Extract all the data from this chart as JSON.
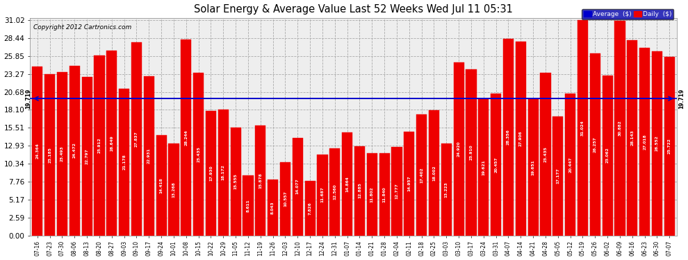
{
  "title": "Solar Energy & Average Value Last 52 Weeks Wed Jul 11 05:31",
  "copyright": "Copyright 2012 Cartronics.com",
  "average_value": 19.719,
  "average_label": "19.719",
  "bar_color": "#ee0000",
  "average_line_color": "#0000cc",
  "background_color": "#ffffff",
  "plot_bg_color": "#ffffff",
  "ylim": [
    0,
    31.02
  ],
  "yticks": [
    0.0,
    2.59,
    5.17,
    7.76,
    10.34,
    12.93,
    15.51,
    18.1,
    20.68,
    23.27,
    25.85,
    28.44,
    31.02
  ],
  "legend_avg_color": "#0000cc",
  "legend_daily_color": "#ee0000",
  "categories": [
    "07-16",
    "07-23",
    "07-30",
    "08-06",
    "08-13",
    "08-20",
    "08-27",
    "09-03",
    "09-10",
    "09-17",
    "09-24",
    "10-01",
    "10-08",
    "10-15",
    "10-22",
    "10-29",
    "11-05",
    "11-12",
    "11-19",
    "11-26",
    "12-03",
    "12-10",
    "12-17",
    "12-24",
    "12-31",
    "01-07",
    "01-14",
    "01-21",
    "01-28",
    "02-04",
    "02-11",
    "02-18",
    "02-25",
    "03-03",
    "03-10",
    "03-17",
    "03-24",
    "03-31",
    "04-07",
    "04-14",
    "04-21",
    "04-28",
    "05-05",
    "05-12",
    "05-19",
    "05-26",
    "06-02",
    "06-09",
    "06-16",
    "06-23",
    "06-30",
    "07-07"
  ],
  "values": [
    24.364,
    23.185,
    23.493,
    24.472,
    22.797,
    25.912,
    26.649,
    21.178,
    27.837,
    22.931,
    14.418,
    13.268,
    28.244,
    23.435,
    17.93,
    18.172,
    15.555,
    8.611,
    15.878,
    8.043,
    10.557,
    14.077,
    7.826,
    11.687,
    12.56,
    14.864,
    12.885,
    11.802,
    11.84,
    12.777,
    14.957,
    17.402,
    18.002,
    13.223,
    24.92,
    23.91,
    19.621,
    20.457,
    28.356,
    27.906,
    19.651,
    23.435,
    17.177,
    20.447,
    31.024,
    26.257,
    23.062,
    30.882,
    28.143,
    27.018,
    26.552,
    25.722
  ]
}
